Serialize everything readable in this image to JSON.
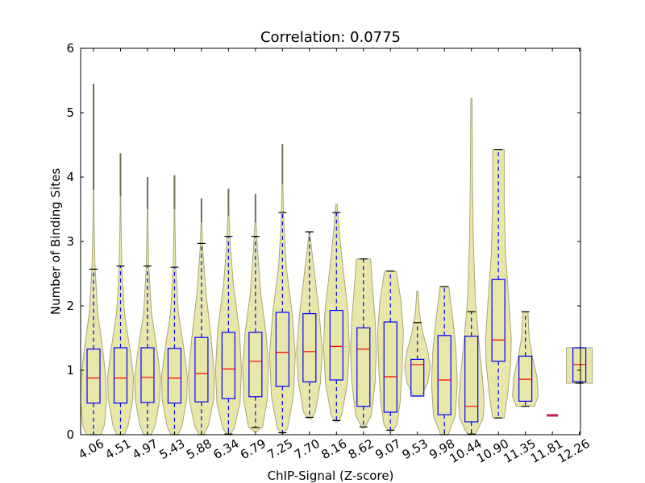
{
  "chart_data": {
    "type": "violin-box",
    "title": "Correlation: 0.0775",
    "xlabel": "ChIP-Signal (Z-score)",
    "ylabel": "Number of Binding Sites",
    "ylim": [
      0,
      6
    ],
    "yticks": [
      "0",
      "1",
      "2",
      "3",
      "4",
      "5",
      "6"
    ],
    "grid": false,
    "colors": {
      "violin_fill": "#e8e6a8",
      "violin_edge": "#a8a67a",
      "box": "#0000ff",
      "median": "#ff0000",
      "whisker": "#0000ff",
      "cap": "#000000",
      "spike": "#6e6e50"
    },
    "categories": [
      "4.06",
      "4.51",
      "4.97",
      "5.43",
      "5.88",
      "6.34",
      "6.79",
      "7.25",
      "7.70",
      "8.16",
      "8.62",
      "9.07",
      "9.53",
      "9.98",
      "10.44",
      "10.90",
      "11.35",
      "11.81",
      "12.26"
    ],
    "boxes": [
      {
        "category": "4.06",
        "whislo": 0.0,
        "q1": 0.49,
        "median": 0.88,
        "q3": 1.33,
        "whishi": 2.57,
        "max": 5.45
      },
      {
        "category": "4.51",
        "whislo": 0.0,
        "q1": 0.49,
        "median": 0.88,
        "q3": 1.35,
        "whishi": 2.62,
        "max": 4.37
      },
      {
        "category": "4.97",
        "whislo": 0.0,
        "q1": 0.5,
        "median": 0.89,
        "q3": 1.35,
        "whishi": 2.62,
        "max": 4.0
      },
      {
        "category": "5.43",
        "whislo": 0.0,
        "q1": 0.49,
        "median": 0.88,
        "q3": 1.34,
        "whishi": 2.6,
        "max": 4.03
      },
      {
        "category": "5.88",
        "whislo": 0.0,
        "q1": 0.51,
        "median": 0.95,
        "q3": 1.51,
        "whishi": 2.97,
        "max": 3.67
      },
      {
        "category": "6.34",
        "whislo": 0.01,
        "q1": 0.56,
        "median": 1.02,
        "q3": 1.59,
        "whishi": 3.08,
        "max": 3.82
      },
      {
        "category": "6.79",
        "whislo": 0.11,
        "q1": 0.59,
        "median": 1.14,
        "q3": 1.59,
        "whishi": 3.08,
        "max": 3.74
      },
      {
        "category": "7.25",
        "whislo": 0.03,
        "q1": 0.75,
        "median": 1.28,
        "q3": 1.9,
        "whishi": 3.45,
        "max": 4.51
      },
      {
        "category": "7.70",
        "whislo": 0.27,
        "q1": 0.82,
        "median": 1.29,
        "q3": 1.88,
        "whishi": 3.15,
        "max": 3.15
      },
      {
        "category": "8.16",
        "whislo": 0.22,
        "q1": 0.85,
        "median": 1.37,
        "q3": 1.93,
        "whishi": 3.45,
        "max": 3.58
      },
      {
        "category": "8.62",
        "whislo": 0.12,
        "q1": 0.44,
        "median": 1.33,
        "q3": 1.66,
        "whishi": 2.73,
        "max": 2.73
      },
      {
        "category": "9.07",
        "whislo": 0.07,
        "q1": 0.35,
        "median": 0.9,
        "q3": 1.75,
        "whishi": 2.54,
        "max": 2.54
      },
      {
        "category": "9.53",
        "whislo": 0.6,
        "q1": 0.6,
        "median": 1.09,
        "q3": 1.17,
        "whishi": 1.74,
        "max": 2.23
      },
      {
        "category": "9.98",
        "whislo": 0.0,
        "q1": 0.31,
        "median": 0.85,
        "q3": 1.54,
        "whishi": 2.3,
        "max": 2.3
      },
      {
        "category": "10.44",
        "whislo": 0.01,
        "q1": 0.2,
        "median": 0.44,
        "q3": 1.53,
        "whishi": 1.91,
        "max": 5.22
      },
      {
        "category": "10.90",
        "whislo": 0.26,
        "q1": 1.14,
        "median": 1.47,
        "q3": 2.41,
        "whishi": 4.43,
        "max": 4.43
      },
      {
        "category": "11.35",
        "whislo": 0.44,
        "q1": 0.52,
        "median": 0.86,
        "q3": 1.22,
        "whishi": 1.91,
        "max": 1.91
      },
      {
        "category": "11.81",
        "whislo": 0.31,
        "q1": 0.31,
        "median": 0.31,
        "q3": 0.31,
        "whishi": 0.31,
        "max": 0.31
      },
      {
        "category": "12.26",
        "whislo": 0.8,
        "q1": 0.82,
        "median": 1.09,
        "q3": 1.35,
        "whishi": 1.35,
        "max": 1.35
      }
    ],
    "violins": [
      {
        "profile": [
          [
            0,
            0.55
          ],
          [
            0.15,
            0.85
          ],
          [
            0.5,
            1.0
          ],
          [
            0.9,
            0.95
          ],
          [
            1.35,
            0.7
          ],
          [
            1.9,
            0.32
          ],
          [
            2.6,
            0.12
          ],
          [
            3.2,
            0.05
          ],
          [
            3.8,
            0.02
          ]
        ]
      },
      {
        "profile": [
          [
            0,
            0.3
          ],
          [
            0.15,
            0.6
          ],
          [
            0.55,
            0.95
          ],
          [
            0.9,
            1.0
          ],
          [
            1.3,
            0.75
          ],
          [
            1.9,
            0.3
          ],
          [
            2.6,
            0.1
          ],
          [
            3.2,
            0.05
          ],
          [
            3.7,
            0.02
          ]
        ]
      },
      {
        "profile": [
          [
            0,
            0.3
          ],
          [
            0.15,
            0.6
          ],
          [
            0.55,
            0.95
          ],
          [
            0.9,
            1.0
          ],
          [
            1.3,
            0.75
          ],
          [
            1.9,
            0.3
          ],
          [
            2.6,
            0.1
          ],
          [
            3.1,
            0.05
          ],
          [
            3.5,
            0.02
          ]
        ]
      },
      {
        "profile": [
          [
            0,
            0.3
          ],
          [
            0.15,
            0.6
          ],
          [
            0.55,
            0.95
          ],
          [
            0.9,
            1.0
          ],
          [
            1.3,
            0.75
          ],
          [
            1.9,
            0.3
          ],
          [
            2.6,
            0.1
          ],
          [
            3.1,
            0.05
          ],
          [
            3.5,
            0.02
          ]
        ]
      },
      {
        "profile": [
          [
            0,
            0.2
          ],
          [
            0.15,
            0.55
          ],
          [
            0.55,
            0.95
          ],
          [
            0.95,
            1.0
          ],
          [
            1.5,
            0.75
          ],
          [
            2.2,
            0.35
          ],
          [
            2.9,
            0.1
          ],
          [
            3.3,
            0.03
          ]
        ]
      },
      {
        "profile": [
          [
            0,
            0.1
          ],
          [
            0.1,
            0.45
          ],
          [
            0.5,
            0.9
          ],
          [
            1.0,
            1.0
          ],
          [
            1.6,
            0.85
          ],
          [
            2.3,
            0.4
          ],
          [
            2.9,
            0.15
          ],
          [
            3.4,
            0.04
          ]
        ]
      },
      {
        "profile": [
          [
            0.05,
            0.1
          ],
          [
            0.12,
            0.55
          ],
          [
            0.55,
            0.92
          ],
          [
            1.1,
            1.0
          ],
          [
            1.6,
            0.8
          ],
          [
            2.2,
            0.4
          ],
          [
            2.9,
            0.15
          ],
          [
            3.3,
            0.04
          ]
        ]
      },
      {
        "profile": [
          [
            0.02,
            0.08
          ],
          [
            0.1,
            0.4
          ],
          [
            0.6,
            0.85
          ],
          [
            1.25,
            1.0
          ],
          [
            1.9,
            0.75
          ],
          [
            2.6,
            0.3
          ],
          [
            3.3,
            0.1
          ],
          [
            3.9,
            0.03
          ]
        ]
      },
      {
        "profile": [
          [
            0.25,
            0.15
          ],
          [
            0.35,
            0.45
          ],
          [
            0.8,
            0.85
          ],
          [
            1.3,
            1.0
          ],
          [
            1.9,
            0.75
          ],
          [
            2.5,
            0.4
          ],
          [
            3.0,
            0.1
          ],
          [
            3.15,
            0.02
          ]
        ]
      },
      {
        "profile": [
          [
            0.2,
            0.1
          ],
          [
            0.3,
            0.4
          ],
          [
            0.8,
            0.85
          ],
          [
            1.35,
            1.0
          ],
          [
            1.9,
            0.9
          ],
          [
            2.6,
            0.5
          ],
          [
            3.2,
            0.2
          ],
          [
            3.58,
            0.05
          ]
        ]
      },
      {
        "profile": [
          [
            0.1,
            0.1
          ],
          [
            0.3,
            0.6
          ],
          [
            0.8,
            0.9
          ],
          [
            1.3,
            1.0
          ],
          [
            1.8,
            0.9
          ],
          [
            2.3,
            0.7
          ],
          [
            2.73,
            0.55
          ]
        ]
      },
      {
        "profile": [
          [
            0.05,
            0.1
          ],
          [
            0.15,
            0.5
          ],
          [
            0.5,
            0.75
          ],
          [
            1.0,
            0.9
          ],
          [
            1.6,
            1.0
          ],
          [
            2.1,
            0.8
          ],
          [
            2.54,
            0.45
          ]
        ]
      },
      {
        "profile": [
          [
            0.6,
            0.3
          ],
          [
            0.8,
            0.8
          ],
          [
            1.05,
            1.0
          ],
          [
            1.3,
            0.8
          ],
          [
            1.6,
            0.4
          ],
          [
            1.9,
            0.15
          ],
          [
            2.23,
            0.05
          ]
        ]
      },
      {
        "profile": [
          [
            0,
            0.3
          ],
          [
            0.3,
            0.85
          ],
          [
            0.8,
            1.0
          ],
          [
            1.3,
            0.9
          ],
          [
            1.8,
            0.65
          ],
          [
            2.1,
            0.45
          ],
          [
            2.3,
            0.35
          ]
        ]
      },
      {
        "profile": [
          [
            0,
            0.3
          ],
          [
            0.25,
            0.9
          ],
          [
            0.5,
            1.0
          ],
          [
            1.0,
            0.8
          ],
          [
            1.5,
            0.55
          ],
          [
            2.1,
            0.3
          ],
          [
            3.0,
            0.15
          ],
          [
            4.0,
            0.08
          ],
          [
            5.22,
            0.05
          ]
        ]
      },
      {
        "profile": [
          [
            0.26,
            0.45
          ],
          [
            0.6,
            0.7
          ],
          [
            1.1,
            0.95
          ],
          [
            1.5,
            1.0
          ],
          [
            2.1,
            0.8
          ],
          [
            2.8,
            0.55
          ],
          [
            3.6,
            0.45
          ],
          [
            4.43,
            0.45
          ]
        ]
      },
      {
        "profile": [
          [
            0.44,
            0.7
          ],
          [
            0.6,
            1.0
          ],
          [
            0.9,
            0.9
          ],
          [
            1.2,
            0.55
          ],
          [
            1.5,
            0.3
          ],
          [
            1.91,
            0.2
          ]
        ]
      },
      {
        "profile": [
          [
            0.3,
            0.5
          ],
          [
            0.32,
            0.5
          ]
        ]
      },
      {
        "profile": [
          [
            0.8,
            1.0
          ],
          [
            1.35,
            1.0
          ]
        ]
      }
    ]
  }
}
